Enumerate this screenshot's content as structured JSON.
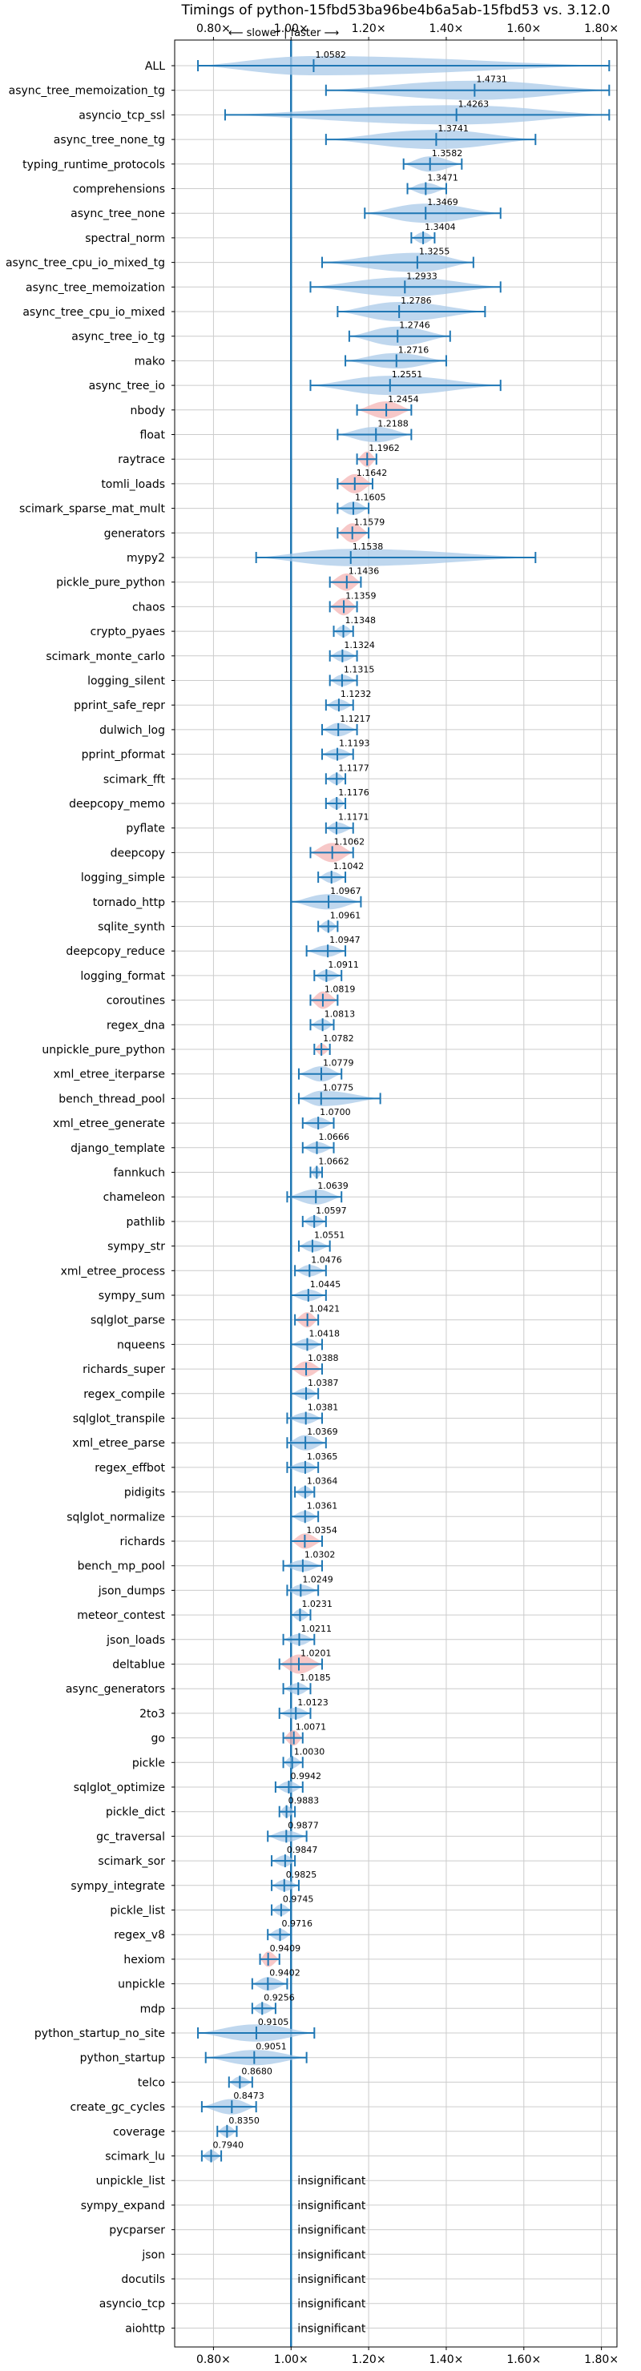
{
  "chart_data": {
    "type": "violin",
    "title": "Timings of python-15fbd53ba96be4b6a5ab-15fbd53 vs. 3.12.0",
    "direction_label": "⟵ slower | faster ⟶",
    "xlim": [
      0.7,
      1.84
    ],
    "x_ticks": [
      0.8,
      1.0,
      1.2,
      1.4,
      1.6,
      1.8
    ],
    "x_tick_labels": [
      "0.80×",
      "1.00×",
      "1.20×",
      "1.40×",
      "1.60×",
      "1.80×"
    ],
    "reference_line": 1.0,
    "grid": true,
    "colors": {
      "normal": "#a9c9e8",
      "highlight": "#f4b6b6",
      "line": "#1f77b4"
    },
    "benchmarks": [
      {
        "name": "ALL",
        "value": 1.0582,
        "label": "1.0582",
        "min": 0.76,
        "max": 1.82,
        "width": 1.0,
        "highlight": false
      },
      {
        "name": "async_tree_memoization_tg",
        "value": 1.4731,
        "label": "1.4731",
        "min": 1.09,
        "max": 1.82,
        "width": 1.0,
        "highlight": false
      },
      {
        "name": "asyncio_tcp_ssl",
        "value": 1.4263,
        "label": "1.4263",
        "min": 0.83,
        "max": 1.82,
        "width": 1.0,
        "highlight": false
      },
      {
        "name": "async_tree_none_tg",
        "value": 1.3741,
        "label": "1.3741",
        "min": 1.09,
        "max": 1.63,
        "width": 1.0,
        "highlight": false
      },
      {
        "name": "typing_runtime_protocols",
        "value": 1.3582,
        "label": "1.3582",
        "min": 1.29,
        "max": 1.44,
        "width": 0.8,
        "highlight": false
      },
      {
        "name": "comprehensions",
        "value": 1.3471,
        "label": "1.3471",
        "min": 1.3,
        "max": 1.4,
        "width": 0.6,
        "highlight": false
      },
      {
        "name": "async_tree_none",
        "value": 1.3469,
        "label": "1.3469",
        "min": 1.19,
        "max": 1.54,
        "width": 1.0,
        "highlight": false
      },
      {
        "name": "spectral_norm",
        "value": 1.3404,
        "label": "1.3404",
        "min": 1.31,
        "max": 1.37,
        "width": 0.6,
        "highlight": false
      },
      {
        "name": "async_tree_cpu_io_mixed_tg",
        "value": 1.3255,
        "label": "1.3255",
        "min": 1.08,
        "max": 1.47,
        "width": 1.0,
        "highlight": false
      },
      {
        "name": "async_tree_memoization",
        "value": 1.2933,
        "label": "1.2933",
        "min": 1.05,
        "max": 1.54,
        "width": 1.0,
        "highlight": false
      },
      {
        "name": "async_tree_cpu_io_mixed",
        "value": 1.2786,
        "label": "1.2786",
        "min": 1.12,
        "max": 1.5,
        "width": 1.0,
        "highlight": false
      },
      {
        "name": "async_tree_io_tg",
        "value": 1.2746,
        "label": "1.2746",
        "min": 1.15,
        "max": 1.41,
        "width": 1.0,
        "highlight": false
      },
      {
        "name": "mako",
        "value": 1.2716,
        "label": "1.2716",
        "min": 1.14,
        "max": 1.4,
        "width": 0.8,
        "highlight": false
      },
      {
        "name": "async_tree_io",
        "value": 1.2551,
        "label": "1.2551",
        "min": 1.05,
        "max": 1.54,
        "width": 1.0,
        "highlight": false
      },
      {
        "name": "nbody",
        "value": 1.2454,
        "label": "1.2454",
        "min": 1.17,
        "max": 1.31,
        "width": 0.9,
        "highlight": true
      },
      {
        "name": "float",
        "value": 1.2188,
        "label": "1.2188",
        "min": 1.12,
        "max": 1.31,
        "width": 0.8,
        "highlight": false
      },
      {
        "name": "raytrace",
        "value": 1.1962,
        "label": "1.1962",
        "min": 1.17,
        "max": 1.22,
        "width": 0.8,
        "highlight": true
      },
      {
        "name": "tomli_loads",
        "value": 1.1642,
        "label": "1.1642",
        "min": 1.12,
        "max": 1.21,
        "width": 1.0,
        "highlight": true
      },
      {
        "name": "scimark_sparse_mat_mult",
        "value": 1.1605,
        "label": "1.1605",
        "min": 1.12,
        "max": 1.2,
        "width": 0.7,
        "highlight": false
      },
      {
        "name": "generators",
        "value": 1.1579,
        "label": "1.1579",
        "min": 1.12,
        "max": 1.2,
        "width": 1.0,
        "highlight": true
      },
      {
        "name": "mypy2",
        "value": 1.1538,
        "label": "1.1538",
        "min": 0.91,
        "max": 1.63,
        "width": 0.9,
        "highlight": false
      },
      {
        "name": "pickle_pure_python",
        "value": 1.1436,
        "label": "1.1436",
        "min": 1.1,
        "max": 1.18,
        "width": 0.9,
        "highlight": true
      },
      {
        "name": "chaos",
        "value": 1.1359,
        "label": "1.1359",
        "min": 1.1,
        "max": 1.17,
        "width": 0.9,
        "highlight": true
      },
      {
        "name": "crypto_pyaes",
        "value": 1.1348,
        "label": "1.1348",
        "min": 1.11,
        "max": 1.16,
        "width": 0.6,
        "highlight": false
      },
      {
        "name": "scimark_monte_carlo",
        "value": 1.1324,
        "label": "1.1324",
        "min": 1.1,
        "max": 1.17,
        "width": 0.6,
        "highlight": false
      },
      {
        "name": "logging_silent",
        "value": 1.1315,
        "label": "1.1315",
        "min": 1.1,
        "max": 1.17,
        "width": 0.6,
        "highlight": false
      },
      {
        "name": "pprint_safe_repr",
        "value": 1.1232,
        "label": "1.1232",
        "min": 1.09,
        "max": 1.16,
        "width": 0.6,
        "highlight": false
      },
      {
        "name": "dulwich_log",
        "value": 1.1217,
        "label": "1.1217",
        "min": 1.08,
        "max": 1.17,
        "width": 0.7,
        "highlight": false
      },
      {
        "name": "pprint_pformat",
        "value": 1.1193,
        "label": "1.1193",
        "min": 1.08,
        "max": 1.16,
        "width": 0.6,
        "highlight": false
      },
      {
        "name": "scimark_fft",
        "value": 1.1177,
        "label": "1.1177",
        "min": 1.09,
        "max": 1.14,
        "width": 0.6,
        "highlight": false
      },
      {
        "name": "deepcopy_memo",
        "value": 1.1176,
        "label": "1.1176",
        "min": 1.09,
        "max": 1.14,
        "width": 0.6,
        "highlight": false
      },
      {
        "name": "pyflate",
        "value": 1.1171,
        "label": "1.1171",
        "min": 1.09,
        "max": 1.16,
        "width": 0.6,
        "highlight": false
      },
      {
        "name": "deepcopy",
        "value": 1.1062,
        "label": "1.1062",
        "min": 1.05,
        "max": 1.16,
        "width": 1.0,
        "highlight": true
      },
      {
        "name": "logging_simple",
        "value": 1.1042,
        "label": "1.1042",
        "min": 1.07,
        "max": 1.14,
        "width": 0.6,
        "highlight": false
      },
      {
        "name": "tornado_http",
        "value": 1.0967,
        "label": "1.0967",
        "min": 1.0,
        "max": 1.18,
        "width": 0.8,
        "highlight": false
      },
      {
        "name": "sqlite_synth",
        "value": 1.0961,
        "label": "1.0961",
        "min": 1.07,
        "max": 1.12,
        "width": 0.6,
        "highlight": false
      },
      {
        "name": "deepcopy_reduce",
        "value": 1.0947,
        "label": "1.0947",
        "min": 1.04,
        "max": 1.14,
        "width": 0.6,
        "highlight": false
      },
      {
        "name": "logging_format",
        "value": 1.0911,
        "label": "1.0911",
        "min": 1.06,
        "max": 1.13,
        "width": 0.6,
        "highlight": false
      },
      {
        "name": "coroutines",
        "value": 1.0819,
        "label": "1.0819",
        "min": 1.05,
        "max": 1.12,
        "width": 0.9,
        "highlight": true
      },
      {
        "name": "regex_dna",
        "value": 1.0813,
        "label": "1.0813",
        "min": 1.05,
        "max": 1.11,
        "width": 0.6,
        "highlight": false
      },
      {
        "name": "unpickle_pure_python",
        "value": 1.0782,
        "label": "1.0782",
        "min": 1.06,
        "max": 1.1,
        "width": 0.6,
        "highlight": true
      },
      {
        "name": "xml_etree_iterparse",
        "value": 1.0779,
        "label": "1.0779",
        "min": 1.02,
        "max": 1.13,
        "width": 0.8,
        "highlight": false
      },
      {
        "name": "bench_thread_pool",
        "value": 1.0775,
        "label": "1.0775",
        "min": 1.02,
        "max": 1.23,
        "width": 0.8,
        "highlight": false
      },
      {
        "name": "xml_etree_generate",
        "value": 1.07,
        "label": "1.0700",
        "min": 1.03,
        "max": 1.11,
        "width": 0.6,
        "highlight": false
      },
      {
        "name": "django_template",
        "value": 1.0666,
        "label": "1.0666",
        "min": 1.03,
        "max": 1.11,
        "width": 0.6,
        "highlight": false
      },
      {
        "name": "fannkuch",
        "value": 1.0662,
        "label": "1.0662",
        "min": 1.05,
        "max": 1.08,
        "width": 0.6,
        "highlight": false
      },
      {
        "name": "chameleon",
        "value": 1.0639,
        "label": "1.0639",
        "min": 0.99,
        "max": 1.13,
        "width": 0.8,
        "highlight": false
      },
      {
        "name": "pathlib",
        "value": 1.0597,
        "label": "1.0597",
        "min": 1.03,
        "max": 1.09,
        "width": 0.6,
        "highlight": false
      },
      {
        "name": "sympy_str",
        "value": 1.0551,
        "label": "1.0551",
        "min": 1.02,
        "max": 1.1,
        "width": 0.6,
        "highlight": false
      },
      {
        "name": "xml_etree_process",
        "value": 1.0476,
        "label": "1.0476",
        "min": 1.01,
        "max": 1.09,
        "width": 0.6,
        "highlight": false
      },
      {
        "name": "sympy_sum",
        "value": 1.0445,
        "label": "1.0445",
        "min": 1.0,
        "max": 1.09,
        "width": 0.6,
        "highlight": false
      },
      {
        "name": "sqlglot_parse",
        "value": 1.0421,
        "label": "1.0421",
        "min": 1.01,
        "max": 1.07,
        "width": 0.8,
        "highlight": true
      },
      {
        "name": "nqueens",
        "value": 1.0418,
        "label": "1.0418",
        "min": 1.0,
        "max": 1.08,
        "width": 0.6,
        "highlight": false
      },
      {
        "name": "richards_super",
        "value": 1.0388,
        "label": "1.0388",
        "min": 1.0,
        "max": 1.08,
        "width": 0.8,
        "highlight": true
      },
      {
        "name": "regex_compile",
        "value": 1.0387,
        "label": "1.0387",
        "min": 1.0,
        "max": 1.07,
        "width": 0.6,
        "highlight": false
      },
      {
        "name": "sqlglot_transpile",
        "value": 1.0381,
        "label": "1.0381",
        "min": 0.99,
        "max": 1.08,
        "width": 0.6,
        "highlight": false
      },
      {
        "name": "xml_etree_parse",
        "value": 1.0369,
        "label": "1.0369",
        "min": 0.99,
        "max": 1.09,
        "width": 0.8,
        "highlight": false
      },
      {
        "name": "regex_effbot",
        "value": 1.0365,
        "label": "1.0365",
        "min": 0.99,
        "max": 1.07,
        "width": 0.6,
        "highlight": false
      },
      {
        "name": "pidigits",
        "value": 1.0364,
        "label": "1.0364",
        "min": 1.01,
        "max": 1.06,
        "width": 0.6,
        "highlight": false
      },
      {
        "name": "sqlglot_normalize",
        "value": 1.0361,
        "label": "1.0361",
        "min": 1.0,
        "max": 1.07,
        "width": 0.6,
        "highlight": false
      },
      {
        "name": "richards",
        "value": 1.0354,
        "label": "1.0354",
        "min": 1.0,
        "max": 1.08,
        "width": 0.8,
        "highlight": true
      },
      {
        "name": "bench_mp_pool",
        "value": 1.0302,
        "label": "1.0302",
        "min": 0.98,
        "max": 1.08,
        "width": 0.6,
        "highlight": false
      },
      {
        "name": "json_dumps",
        "value": 1.0249,
        "label": "1.0249",
        "min": 0.99,
        "max": 1.07,
        "width": 0.6,
        "highlight": false
      },
      {
        "name": "meteor_contest",
        "value": 1.0231,
        "label": "1.0231",
        "min": 1.0,
        "max": 1.05,
        "width": 0.6,
        "highlight": false
      },
      {
        "name": "json_loads",
        "value": 1.0211,
        "label": "1.0211",
        "min": 0.98,
        "max": 1.06,
        "width": 0.6,
        "highlight": false
      },
      {
        "name": "deltablue",
        "value": 1.0201,
        "label": "1.0201",
        "min": 0.97,
        "max": 1.08,
        "width": 1.0,
        "highlight": true
      },
      {
        "name": "async_generators",
        "value": 1.0185,
        "label": "1.0185",
        "min": 0.98,
        "max": 1.05,
        "width": 0.6,
        "highlight": false
      },
      {
        "name": "2to3",
        "value": 1.0123,
        "label": "1.0123",
        "min": 0.97,
        "max": 1.05,
        "width": 0.6,
        "highlight": false
      },
      {
        "name": "go",
        "value": 1.0071,
        "label": "1.0071",
        "min": 0.98,
        "max": 1.03,
        "width": 0.8,
        "highlight": true
      },
      {
        "name": "pickle",
        "value": 1.003,
        "label": "1.0030",
        "min": 0.98,
        "max": 1.03,
        "width": 0.6,
        "highlight": false
      },
      {
        "name": "sqlglot_optimize",
        "value": 0.9942,
        "label": "0.9942",
        "min": 0.96,
        "max": 1.03,
        "width": 0.6,
        "highlight": false
      },
      {
        "name": "pickle_dict",
        "value": 0.9883,
        "label": "0.9883",
        "min": 0.97,
        "max": 1.01,
        "width": 0.6,
        "highlight": false
      },
      {
        "name": "gc_traversal",
        "value": 0.9877,
        "label": "0.9877",
        "min": 0.94,
        "max": 1.04,
        "width": 0.6,
        "highlight": false
      },
      {
        "name": "scimark_sor",
        "value": 0.9847,
        "label": "0.9847",
        "min": 0.95,
        "max": 1.01,
        "width": 0.6,
        "highlight": false
      },
      {
        "name": "sympy_integrate",
        "value": 0.9825,
        "label": "0.9825",
        "min": 0.95,
        "max": 1.02,
        "width": 0.6,
        "highlight": false
      },
      {
        "name": "pickle_list",
        "value": 0.9745,
        "label": "0.9745",
        "min": 0.95,
        "max": 1.0,
        "width": 0.6,
        "highlight": false
      },
      {
        "name": "regex_v8",
        "value": 0.9716,
        "label": "0.9716",
        "min": 0.94,
        "max": 1.0,
        "width": 0.6,
        "highlight": false
      },
      {
        "name": "hexiom",
        "value": 0.9409,
        "label": "0.9409",
        "min": 0.92,
        "max": 0.97,
        "width": 0.8,
        "highlight": true
      },
      {
        "name": "unpickle",
        "value": 0.9402,
        "label": "0.9402",
        "min": 0.9,
        "max": 0.99,
        "width": 0.7,
        "highlight": false
      },
      {
        "name": "mdp",
        "value": 0.9256,
        "label": "0.9256",
        "min": 0.9,
        "max": 0.96,
        "width": 0.6,
        "highlight": false
      },
      {
        "name": "python_startup_no_site",
        "value": 0.9105,
        "label": "0.9105",
        "min": 0.76,
        "max": 1.06,
        "width": 0.9,
        "highlight": false
      },
      {
        "name": "python_startup",
        "value": 0.9051,
        "label": "0.9051",
        "min": 0.78,
        "max": 1.04,
        "width": 0.8,
        "highlight": false
      },
      {
        "name": "telco",
        "value": 0.868,
        "label": "0.8680",
        "min": 0.84,
        "max": 0.9,
        "width": 0.6,
        "highlight": false
      },
      {
        "name": "create_gc_cycles",
        "value": 0.8473,
        "label": "0.8473",
        "min": 0.77,
        "max": 0.91,
        "width": 0.8,
        "highlight": false
      },
      {
        "name": "coverage",
        "value": 0.835,
        "label": "0.8350",
        "min": 0.81,
        "max": 0.86,
        "width": 0.6,
        "highlight": false
      },
      {
        "name": "scimark_lu",
        "value": 0.794,
        "label": "0.7940",
        "min": 0.77,
        "max": 0.82,
        "width": 0.6,
        "highlight": false
      }
    ],
    "insignificant": [
      "unpickle_list",
      "sympy_expand",
      "pycparser",
      "json",
      "docutils",
      "asyncio_tcp",
      "aiohttp"
    ],
    "insignificant_text": "insignificant"
  }
}
